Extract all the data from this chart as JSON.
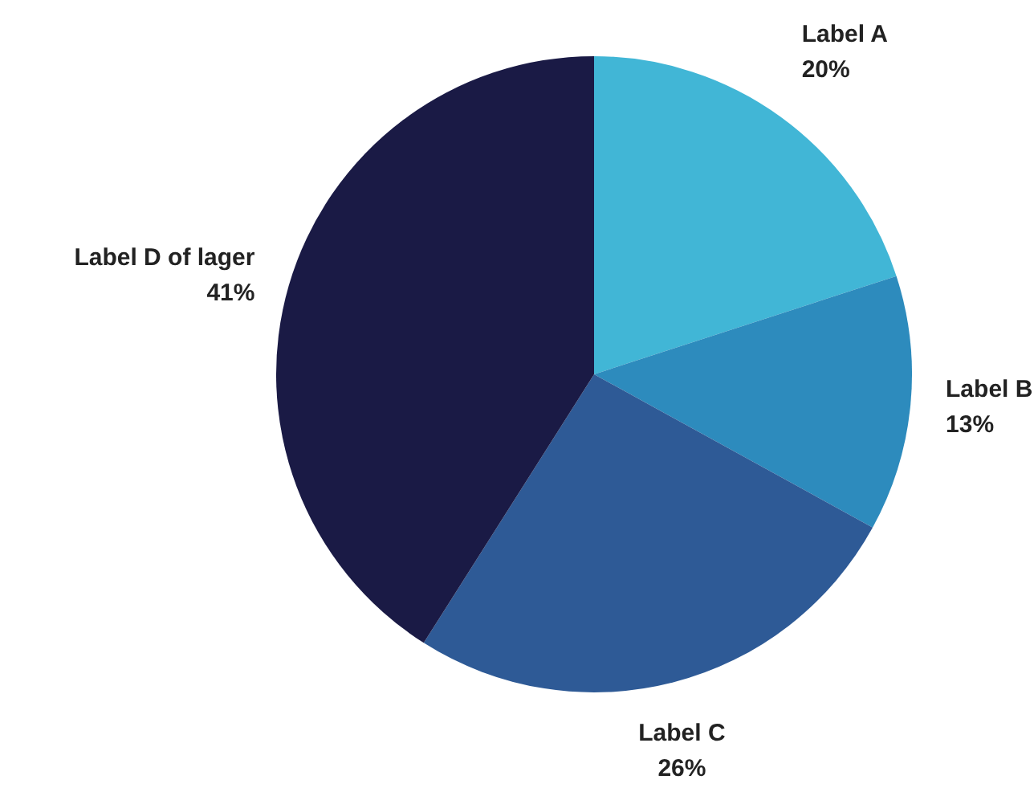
{
  "chart_data": {
    "type": "pie",
    "categories": [
      "Label A",
      "Label B",
      "Label C",
      "Label D of lager"
    ],
    "values": [
      20,
      13,
      26,
      41
    ],
    "colors": [
      "#41b6d6",
      "#2d8bbd",
      "#2e5a96",
      "#1a1a45"
    ],
    "value_labels": [
      "20%",
      "13%",
      "26%",
      "41%"
    ],
    "legend": false
  }
}
